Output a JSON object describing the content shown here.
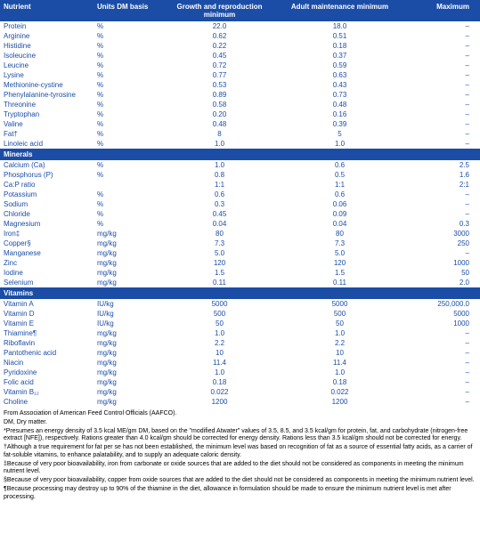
{
  "colors": {
    "header_bg": "#1b4da6",
    "header_text": "#ffffff",
    "cell_text": "#1b4da6",
    "body_bg": "#ffffff",
    "footnote_text": "#000000"
  },
  "columns": [
    "Nutrient",
    "Units DM basis",
    "Growth and reproduction minimum",
    "Adult maintenance minimum",
    "Maximum"
  ],
  "groups": [
    {
      "rows": [
        {
          "n": "Protein",
          "u": "%",
          "g": "22.0",
          "a": "18.0",
          "m": "–"
        },
        {
          "n": "Arginine",
          "u": "%",
          "g": "0.62",
          "a": "0.51",
          "m": "–"
        },
        {
          "n": "Histidine",
          "u": "%",
          "g": "0.22",
          "a": "0.18",
          "m": "–"
        },
        {
          "n": "Isoleucine",
          "u": "%",
          "g": "0.45",
          "a": "0.37",
          "m": "–"
        },
        {
          "n": "Leucine",
          "u": "%",
          "g": "0.72",
          "a": "0.59",
          "m": "–"
        },
        {
          "n": "Lysine",
          "u": "%",
          "g": "0.77",
          "a": "0.63",
          "m": "–"
        },
        {
          "n": "Methionine-cystine",
          "u": "%",
          "g": "0.53",
          "a": "0.43",
          "m": "–"
        },
        {
          "n": "Phenylalanine-tyrosine",
          "u": "%",
          "g": "0.89",
          "a": "0.73",
          "m": "–"
        },
        {
          "n": "Threonine",
          "u": "%",
          "g": "0.58",
          "a": "0.48",
          "m": "–"
        },
        {
          "n": "Tryptophan",
          "u": "%",
          "g": "0.20",
          "a": "0.16",
          "m": "–"
        },
        {
          "n": "Valine",
          "u": "%",
          "g": "0.48",
          "a": "0.39",
          "m": "–"
        },
        {
          "n": "Fat†",
          "u": "%",
          "g": "8",
          "a": "5",
          "m": "–"
        },
        {
          "n": "Linoleic acid",
          "u": "%",
          "g": "1.0",
          "a": "1.0",
          "m": "–"
        }
      ]
    },
    {
      "title": "Minerals",
      "rows": [
        {
          "n": "Calcium (Ca)",
          "u": "%",
          "g": "1.0",
          "a": "0.6",
          "m": "2.5"
        },
        {
          "n": "Phosphorus (P)",
          "u": "%",
          "g": "0.8",
          "a": "0.5",
          "m": "1.6"
        },
        {
          "n": "Ca:P ratio",
          "u": "",
          "g": "1:1",
          "a": "1:1",
          "m": "2:1"
        },
        {
          "n": "Potassium",
          "u": "%",
          "g": "0.6",
          "a": "0.6",
          "m": "–"
        },
        {
          "n": "Sodium",
          "u": "%",
          "g": "0.3",
          "a": "0.06",
          "m": "–"
        },
        {
          "n": "Chloride",
          "u": "%",
          "g": "0.45",
          "a": "0.09",
          "m": "–"
        },
        {
          "n": "Magnesium",
          "u": "%",
          "g": "0.04",
          "a": "0.04",
          "m": "0.3"
        },
        {
          "n": "Iron‡",
          "u": "mg/kg",
          "g": "80",
          "a": "80",
          "m": "3000"
        },
        {
          "n": "Copper§",
          "u": "mg/kg",
          "g": "7.3",
          "a": "7.3",
          "m": "250"
        },
        {
          "n": "Manganese",
          "u": "mg/kg",
          "g": "5.0",
          "a": "5.0",
          "m": "–"
        },
        {
          "n": "Zinc",
          "u": "mg/kg",
          "g": "120",
          "a": "120",
          "m": "1000"
        },
        {
          "n": "Iodine",
          "u": "mg/kg",
          "g": "1.5",
          "a": "1.5",
          "m": "50"
        },
        {
          "n": "Selenium",
          "u": "mg/kg",
          "g": "0.11",
          "a": "0.11",
          "m": "2.0"
        }
      ]
    },
    {
      "title": "Vitamins",
      "rows": [
        {
          "n": "Vitamin A",
          "u": "IU/kg",
          "g": "5000",
          "a": "5000",
          "m": "250,000.0"
        },
        {
          "n": "Vitamin D",
          "u": "IU/kg",
          "g": "500",
          "a": "500",
          "m": "5000"
        },
        {
          "n": "Vitamin E",
          "u": "IU/kg",
          "g": "50",
          "a": "50",
          "m": "1000"
        },
        {
          "n": "Thiamine¶",
          "u": "mg/kg",
          "g": "1.0",
          "a": "1.0",
          "m": "–"
        },
        {
          "n": "Riboflavin",
          "u": "mg/kg",
          "g": "2.2",
          "a": "2.2",
          "m": "–"
        },
        {
          "n": "Pantothenic acid",
          "u": "mg/kg",
          "g": "10",
          "a": "10",
          "m": "–"
        },
        {
          "n": "Niacin",
          "u": "mg/kg",
          "g": "11.4",
          "a": "11.4",
          "m": "–"
        },
        {
          "n": "Pyridoxine",
          "u": "mg/kg",
          "g": "1.0",
          "a": "1.0",
          "m": "–"
        },
        {
          "n": "Folic acid",
          "u": "mg/kg",
          "g": "0.18",
          "a": "0.18",
          "m": "–"
        },
        {
          "n": "Vitamin B₁₂",
          "u": "mg/kg",
          "g": "0.022",
          "a": "0.022",
          "m": "–"
        },
        {
          "n": "Choline",
          "u": "mg/kg",
          "g": "1200",
          "a": "1200",
          "m": "–"
        }
      ]
    }
  ],
  "footnotes": [
    "From Association of American Feed Control Officials (AAFCO).",
    "DM, Dry matter.",
    "*Presumes an energy density of 3.5 kcal ME/gm DM, based on the \"modified Atwater\" values of 3.5, 8.5, and 3.5 kcal/gm for protein, fat, and carbohydrate (nitrogen-free extract [NFE]), respectively. Rations greater than 4.0 kcal/gm should be corrected for energy density. Rations less than 3.5 kcal/gm should not be corrected for energy.",
    "†Although a true requirement for fat per se has not been established, the minimum level was based on recognition of fat as a source of essential fatty acids, as a carrier of fat-soluble vitamins, to enhance palatability, and to supply an adequate caloric density.",
    "‡Because of very poor bioavailability, iron from carbonate or oxide sources that are added to the diet should not be considered as components in meeting the minimum nutrient level.",
    "§Because of very poor bioavailability, copper from oxide sources that are added to the diet should not be considered as components in meeting the minimum nutrient level.",
    "¶Because processing may destroy up to 90% of the thiamine in the diet, allowance in formulation should be made to ensure the minimum nutrient level is met after processing."
  ]
}
